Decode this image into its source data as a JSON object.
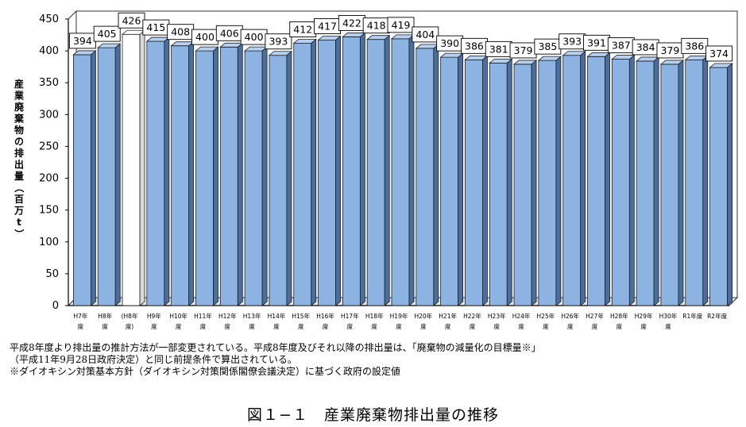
{
  "chart_data": {
    "type": "bar",
    "ylabel": "産業廃棄物の排出量（百万t）",
    "ylim": [
      0,
      450
    ],
    "yticks": [
      0,
      50,
      100,
      150,
      200,
      250,
      300,
      350,
      400,
      450
    ],
    "grid": false,
    "categories": [
      [
        "H7年",
        "度"
      ],
      [
        "H8年",
        "度"
      ],
      [
        "(H8年",
        "度)"
      ],
      [
        "H9年",
        "度"
      ],
      [
        "H10年",
        "度"
      ],
      [
        "H11年",
        "度"
      ],
      [
        "H12年",
        "度"
      ],
      [
        "H13年",
        "度"
      ],
      [
        "H14年",
        "度"
      ],
      [
        "H15年",
        "度"
      ],
      [
        "H16年",
        "度"
      ],
      [
        "H17年",
        "度"
      ],
      [
        "H18年",
        "度"
      ],
      [
        "H19年",
        "度"
      ],
      [
        "H20年",
        "度"
      ],
      [
        "H21年",
        "度"
      ],
      [
        "H22年",
        "度"
      ],
      [
        "H23年",
        "度"
      ],
      [
        "H24年",
        "度"
      ],
      [
        "H25年",
        "度"
      ],
      [
        "H26年",
        "度"
      ],
      [
        "H27年",
        "度"
      ],
      [
        "H28年",
        "度"
      ],
      [
        "H29年",
        "度"
      ],
      [
        "H30年",
        "度"
      ],
      [
        "R1年度",
        ""
      ],
      [
        "R2年度",
        ""
      ]
    ],
    "values": [
      394,
      405,
      426,
      415,
      408,
      400,
      406,
      400,
      393,
      412,
      417,
      422,
      418,
      419,
      404,
      390,
      386,
      381,
      379,
      385,
      393,
      391,
      387,
      384,
      379,
      386,
      374
    ],
    "highlight_index": 2,
    "colors": {
      "bar": "#8db3e2",
      "bar_side": "#4a6f9e",
      "bar_top": "#b8cfee",
      "highlight": "#ffffff",
      "highlight_side": "#d9d9d9",
      "outline": "#1f1f1f"
    }
  },
  "notes": [
    "平成8年度より排出量の推計方法が一部変更されている。平成8年度及びそれ以降の排出量は、「廃棄物の減量化の目標量※」",
    "（平成11年9月28日政府決定）と同じ前提条件で算出されている。",
    "※ダイオキシン対策基本方針（ダイオキシン対策関係閣僚会議決定）に基づく政府の設定値"
  ],
  "caption": "図１−１　産業廃棄物排出量の推移"
}
